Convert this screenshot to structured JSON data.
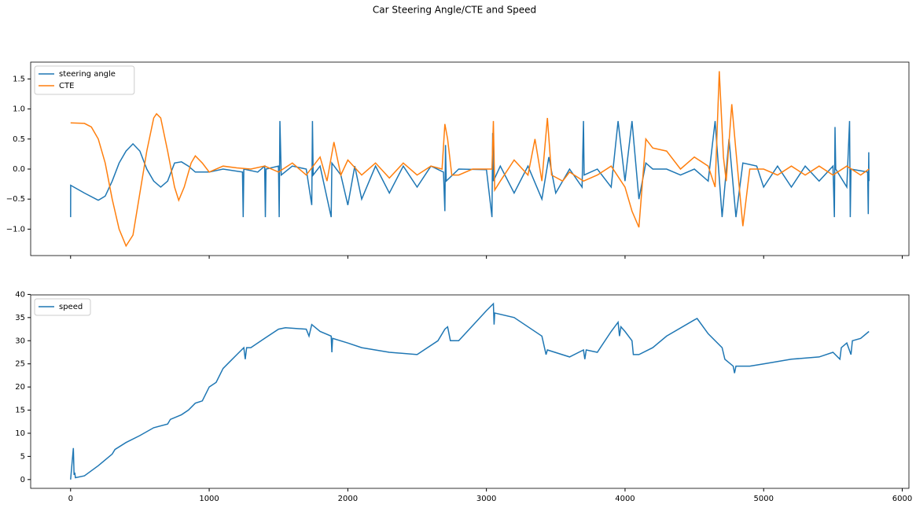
{
  "title": "Car Steering Angle/CTE and Speed",
  "chart_data": [
    {
      "type": "line",
      "ylim": [
        -1.44,
        1.78
      ],
      "yticks": [
        {
          "value": -1.0,
          "label": "−1.0"
        },
        {
          "value": -0.5,
          "label": "−0.5"
        },
        {
          "value": 0.0,
          "label": "0.0"
        },
        {
          "value": 0.5,
          "label": "0.5"
        },
        {
          "value": 1.0,
          "label": "1.0"
        },
        {
          "value": 1.5,
          "label": "1.5"
        }
      ],
      "legend": "upper left",
      "series": [
        {
          "name": "steering angle",
          "color": "#1f77b4",
          "x": [
            0,
            1,
            100,
            200,
            250,
            300,
            350,
            400,
            450,
            500,
            550,
            600,
            650,
            700,
            750,
            800,
            850,
            900,
            1000,
            1100,
            1240,
            1245,
            1250,
            1350,
            1400,
            1405,
            1410,
            1500,
            1505,
            1510,
            1520,
            1600,
            1700,
            1740,
            1745,
            1750,
            1800,
            1880,
            1885,
            1950,
            2000,
            2050,
            2100,
            2200,
            2300,
            2400,
            2500,
            2600,
            2690,
            2700,
            2705,
            2710,
            2800,
            3000,
            3040,
            3045,
            3050,
            3100,
            3200,
            3300,
            3400,
            3450,
            3500,
            3600,
            3690,
            3700,
            3705,
            3800,
            3900,
            3950,
            4000,
            4050,
            4100,
            4150,
            4200,
            4300,
            4400,
            4500,
            4600,
            4650,
            4700,
            4750,
            4800,
            4850,
            4950,
            5000,
            5100,
            5200,
            5300,
            5400,
            5500,
            5510,
            5515,
            5520,
            5600,
            5620,
            5625,
            5630,
            5750,
            5755,
            5758,
            5760
          ],
          "values": [
            -0.8,
            -0.27,
            -0.4,
            -0.52,
            -0.45,
            -0.2,
            0.1,
            0.3,
            0.42,
            0.3,
            0.0,
            -0.2,
            -0.3,
            -0.2,
            0.1,
            0.12,
            0.05,
            -0.05,
            -0.05,
            0.0,
            -0.05,
            -0.8,
            0.0,
            -0.05,
            0.05,
            -0.8,
            0.0,
            0.05,
            -0.8,
            0.8,
            -0.1,
            0.05,
            0.0,
            -0.6,
            0.8,
            -0.1,
            0.05,
            -0.8,
            0.1,
            -0.1,
            -0.6,
            0.05,
            -0.5,
            0.05,
            -0.4,
            0.05,
            -0.3,
            0.05,
            -0.05,
            -0.7,
            0.4,
            -0.2,
            0.0,
            -0.01,
            -0.8,
            0.6,
            -0.2,
            0.05,
            -0.4,
            0.05,
            -0.5,
            0.2,
            -0.4,
            0.0,
            -0.3,
            0.8,
            -0.1,
            0.0,
            -0.3,
            0.8,
            -0.2,
            0.8,
            -0.5,
            0.1,
            0.0,
            0.0,
            -0.1,
            0.0,
            -0.2,
            0.8,
            -0.8,
            0.5,
            -0.8,
            0.1,
            0.05,
            -0.3,
            0.05,
            -0.3,
            0.05,
            -0.2,
            0.05,
            -0.8,
            0.7,
            0.0,
            -0.3,
            0.8,
            -0.8,
            0.0,
            -0.05,
            -0.75,
            0.28,
            -0.2
          ]
        },
        {
          "name": "CTE",
          "color": "#ff7f0e",
          "x": [
            0,
            100,
            150,
            200,
            250,
            300,
            350,
            400,
            450,
            500,
            550,
            600,
            620,
            650,
            700,
            750,
            780,
            820,
            870,
            900,
            950,
            1000,
            1100,
            1200,
            1300,
            1400,
            1500,
            1600,
            1700,
            1800,
            1850,
            1900,
            1950,
            2000,
            2100,
            2200,
            2300,
            2400,
            2500,
            2600,
            2680,
            2700,
            2720,
            2750,
            2800,
            2900,
            3000,
            3040,
            3050,
            3060,
            3100,
            3200,
            3300,
            3350,
            3400,
            3440,
            3470,
            3550,
            3600,
            3700,
            3800,
            3900,
            4000,
            4050,
            4100,
            4150,
            4200,
            4300,
            4400,
            4500,
            4600,
            4650,
            4680,
            4710,
            4730,
            4770,
            4800,
            4850,
            4900,
            5000,
            5100,
            5200,
            5300,
            5400,
            5500,
            5600,
            5700,
            5760
          ],
          "values": [
            0.77,
            0.76,
            0.7,
            0.5,
            0.1,
            -0.5,
            -1.0,
            -1.28,
            -1.1,
            -0.4,
            0.3,
            0.85,
            0.92,
            0.85,
            0.3,
            -0.3,
            -0.52,
            -0.3,
            0.1,
            0.22,
            0.1,
            -0.05,
            0.05,
            0.02,
            0.0,
            0.05,
            -0.05,
            0.1,
            -0.1,
            0.2,
            -0.2,
            0.45,
            -0.1,
            0.15,
            -0.1,
            0.1,
            -0.15,
            0.1,
            -0.1,
            0.05,
            0.0,
            0.75,
            0.5,
            -0.1,
            -0.1,
            0.0,
            0.0,
            0.0,
            0.8,
            -0.35,
            -0.2,
            0.15,
            -0.1,
            0.5,
            -0.2,
            0.85,
            -0.1,
            -0.2,
            -0.05,
            -0.2,
            -0.1,
            0.05,
            -0.3,
            -0.7,
            -0.97,
            0.5,
            0.35,
            0.3,
            0.0,
            0.2,
            0.05,
            -0.3,
            1.63,
            0.2,
            -0.2,
            1.08,
            0.3,
            -0.95,
            0.0,
            0.0,
            -0.1,
            0.05,
            -0.1,
            0.05,
            -0.1,
            0.05,
            -0.1,
            0.0
          ]
        }
      ]
    },
    {
      "type": "line",
      "xlim": [
        -288,
        6048
      ],
      "xticks": [
        0,
        1000,
        2000,
        3000,
        4000,
        5000,
        6000
      ],
      "ylim": [
        -1.9,
        39.9
      ],
      "yticks": [
        0,
        5,
        10,
        15,
        20,
        25,
        30,
        35,
        40
      ],
      "legend": "upper left",
      "series": [
        {
          "name": "speed",
          "color": "#1f77b4",
          "x": [
            0,
            20,
            25,
            30,
            35,
            100,
            200,
            300,
            320,
            400,
            500,
            600,
            700,
            720,
            800,
            850,
            900,
            950,
            1000,
            1050,
            1100,
            1150,
            1200,
            1250,
            1260,
            1270,
            1300,
            1400,
            1500,
            1550,
            1700,
            1720,
            1740,
            1800,
            1880,
            1885,
            1890,
            2000,
            2100,
            2300,
            2500,
            2650,
            2700,
            2720,
            2740,
            2800,
            3000,
            3050,
            3055,
            3060,
            3200,
            3400,
            3430,
            3440,
            3600,
            3700,
            3710,
            3720,
            3800,
            3900,
            3950,
            3960,
            3970,
            4000,
            4050,
            4060,
            4100,
            4200,
            4300,
            4500,
            4520,
            4600,
            4700,
            4720,
            4780,
            4790,
            4800,
            4900,
            5000,
            5200,
            5400,
            5500,
            5550,
            5560,
            5600,
            5630,
            5640,
            5700,
            5760
          ],
          "values": [
            0,
            6.8,
            1,
            1.5,
            0.4,
            0.8,
            3,
            5.5,
            6.5,
            8,
            9.5,
            11.2,
            12,
            13,
            14,
            15,
            16.5,
            17,
            20,
            21,
            24,
            25.5,
            27,
            28.5,
            26,
            28.5,
            28.5,
            30.5,
            32.5,
            32.8,
            32.5,
            31,
            33.5,
            32,
            31,
            27.5,
            30.5,
            29.5,
            28.5,
            27.5,
            27,
            30,
            32.5,
            33,
            30,
            30,
            36.5,
            38,
            33.5,
            36,
            35,
            31,
            27,
            28,
            26.5,
            28,
            26,
            28,
            27.5,
            32,
            34,
            31,
            33,
            32,
            30,
            27,
            27,
            28.5,
            31,
            34.5,
            34.8,
            31.5,
            28.5,
            26,
            24.5,
            23,
            24.5,
            24.5,
            25,
            26,
            26.5,
            27.5,
            26,
            28.5,
            29.5,
            27,
            30,
            30.5,
            32
          ]
        }
      ]
    }
  ]
}
